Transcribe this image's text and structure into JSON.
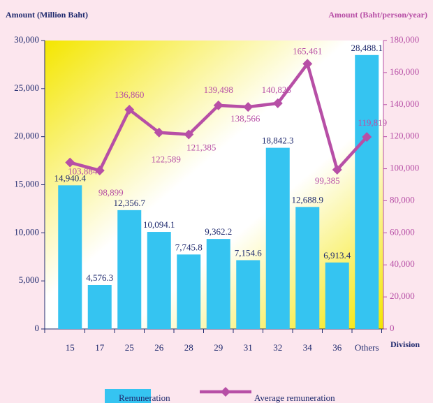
{
  "chart_data": {
    "type": "bar",
    "y_label": "Amount  (Million Baht)",
    "y2_label": "Amount  (Baht/person/year)",
    "x_label": "Division",
    "categories": [
      "15",
      "17",
      "25",
      "26",
      "28",
      "29",
      "31",
      "32",
      "34",
      "36",
      "Others"
    ],
    "series": [
      {
        "name": "Remuneration",
        "type": "bar",
        "color": "#35c4f1",
        "axis": "y",
        "values": [
          14940.4,
          4576.3,
          12356.7,
          10094.1,
          7745.8,
          9362.2,
          7154.6,
          18842.3,
          12688.9,
          6913.4,
          28488.1
        ],
        "value_labels": [
          "14,940.4",
          "4,576.3",
          "12,356.7",
          "10,094.1",
          "7,745.8",
          "9,362.2",
          "7,154.6",
          "18,842.3",
          "12,688.9",
          "6,913.4",
          "28,488.1"
        ]
      },
      {
        "name": "Average remuneration",
        "type": "line",
        "color": "#b74fa6",
        "axis": "y2",
        "values": [
          103884,
          98899,
          136860,
          122589,
          121385,
          139498,
          138566,
          140823,
          165461,
          99385,
          119819
        ],
        "value_labels": [
          "103,884",
          "98,899",
          "136,860",
          "122,589",
          "121,385",
          "139,498",
          "138,566",
          "140,823",
          "165,461",
          "99,385",
          "119,819"
        ]
      }
    ],
    "ylim": [
      0,
      30000
    ],
    "yticks": [
      0,
      {
        "value": 5000,
        "label": "5,000"
      },
      {
        "value": 10000,
        "label": "10,000"
      },
      {
        "value": 15000,
        "label": "15,000"
      },
      {
        "value": 20000,
        "label": "20,000"
      },
      {
        "value": 25000,
        "label": "25,000"
      },
      {
        "value": 30000,
        "label": "30,000"
      }
    ],
    "y2lim": [
      0,
      180000
    ],
    "y2ticks": [
      0,
      {
        "value": 20000,
        "label": "20,000"
      },
      {
        "value": 40000,
        "label": "40,000"
      },
      {
        "value": 60000,
        "label": "60,000"
      },
      {
        "value": 80000,
        "label": "80,000"
      },
      {
        "value": 100000,
        "label": "100,000"
      },
      {
        "value": 120000,
        "label": "120,000"
      },
      {
        "value": 140000,
        "label": "140,000"
      },
      {
        "value": 160000,
        "label": "160,000"
      },
      {
        "value": 180000,
        "label": "180,000"
      }
    ],
    "legend": "bottom"
  }
}
